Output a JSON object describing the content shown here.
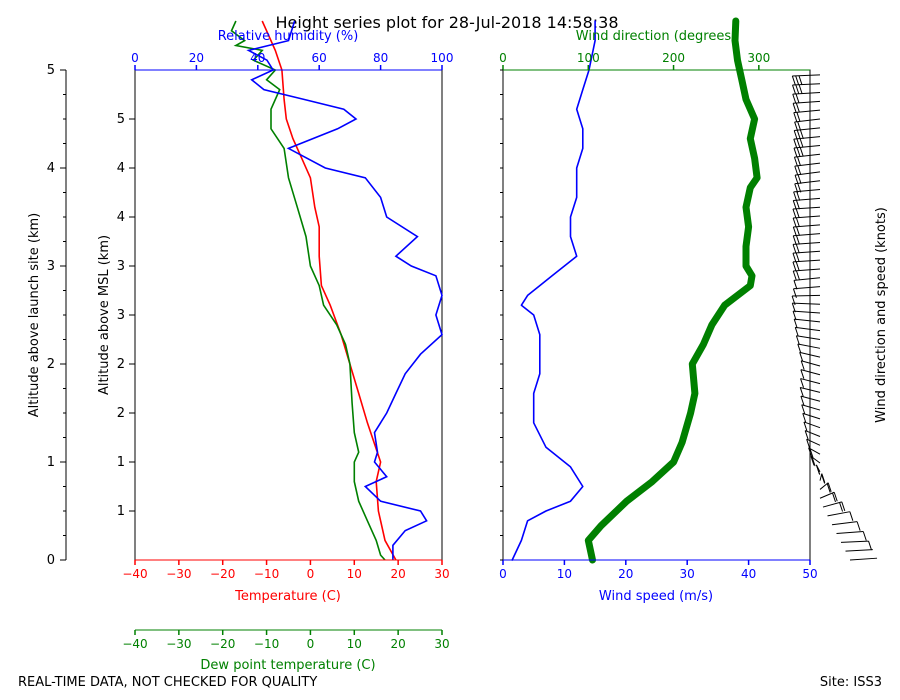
{
  "title": "Height series plot for 28-Jul-2018 14:58:38",
  "footer": {
    "left": "REAL-TIME DATA, NOT CHECKED FOR QUALITY",
    "right": "Site: ISS3"
  },
  "colors": {
    "temperature": "#ff0000",
    "dewpoint": "#008000",
    "humidity": "#0000ff",
    "wind_speed": "#0000ff",
    "wind_dir": "#008000",
    "barbs": "#000000"
  },
  "chart_data": [
    {
      "type": "line",
      "name": "thermo",
      "title": "Height series plot for 28-Jul-2018 14:58:38",
      "ylabel_outer": "Altitude above launch site (km)",
      "ylabel_inner": "Altitude above MSL (km)",
      "y_outer_ticks": [
        "0",
        "1",
        "2",
        "3",
        "4",
        "5"
      ],
      "y_inner_ticks": [
        "1",
        "1",
        "2",
        "2",
        "3",
        "3",
        "4",
        "4",
        "5"
      ],
      "ylim_km": [
        0,
        5
      ],
      "x_temp": {
        "label": "Temperature (C)",
        "lim": [
          -40,
          30
        ],
        "ticks": [
          "−40",
          "−30",
          "−20",
          "−10",
          "0",
          "10",
          "20",
          "30"
        ]
      },
      "x_dew": {
        "label": "Dew point temperature (C)",
        "lim": [
          -40,
          30
        ],
        "ticks": [
          "−40",
          "−30",
          "−20",
          "−10",
          "0",
          "10",
          "20",
          "30"
        ]
      },
      "x_rh": {
        "label": "Relative humidity (%)",
        "lim": [
          0,
          100
        ],
        "ticks": [
          "0",
          "20",
          "40",
          "60",
          "80",
          "100"
        ]
      },
      "series": [
        {
          "name": "Temperature",
          "color": "#ff0000",
          "points": [
            [
              19.5,
              0
            ],
            [
              17,
              0.2
            ],
            [
              15.5,
              0.5
            ],
            [
              15,
              0.8
            ],
            [
              16,
              1.0
            ],
            [
              14.5,
              1.2
            ],
            [
              13,
              1.4
            ],
            [
              11,
              1.7
            ],
            [
              9,
              2.0
            ],
            [
              7,
              2.3
            ],
            [
              4.5,
              2.6
            ],
            [
              2.5,
              2.8
            ],
            [
              2,
              3.1
            ],
            [
              2,
              3.4
            ],
            [
              1,
              3.6
            ],
            [
              0,
              3.9
            ],
            [
              -2,
              4.1
            ],
            [
              -4,
              4.3
            ],
            [
              -5.5,
              4.5
            ],
            [
              -6,
              4.7
            ],
            [
              -6.5,
              5.0
            ],
            [
              -8,
              5.2
            ],
            [
              -10,
              5.4
            ],
            [
              -11,
              5.5
            ]
          ]
        },
        {
          "name": "Dew point",
          "color": "#008000",
          "points": [
            [
              17,
              0
            ],
            [
              16,
              0.05
            ],
            [
              15,
              0.2
            ],
            [
              13,
              0.4
            ],
            [
              11,
              0.6
            ],
            [
              10,
              0.8
            ],
            [
              10,
              1.0
            ],
            [
              11,
              1.1
            ],
            [
              10,
              1.3
            ],
            [
              9.5,
              1.6
            ],
            [
              9,
              2.0
            ],
            [
              8,
              2.2
            ],
            [
              6,
              2.4
            ],
            [
              3,
              2.6
            ],
            [
              2,
              2.8
            ],
            [
              0,
              3.0
            ],
            [
              -1,
              3.3
            ],
            [
              -3,
              3.6
            ],
            [
              -5,
              3.9
            ],
            [
              -6,
              4.2
            ],
            [
              -9,
              4.4
            ],
            [
              -9,
              4.6
            ],
            [
              -7,
              4.8
            ],
            [
              -10,
              4.9
            ],
            [
              -8,
              5.0
            ],
            [
              -13,
              5.1
            ],
            [
              -11,
              5.2
            ],
            [
              -17,
              5.25
            ],
            [
              -15,
              5.3
            ],
            [
              -18,
              5.4
            ],
            [
              -17,
              5.5
            ]
          ]
        },
        {
          "name": "Relative humidity",
          "color": "#0000ff",
          "points": [
            [
              84,
              0
            ],
            [
              84,
              0.15
            ],
            [
              88,
              0.3
            ],
            [
              95,
              0.4
            ],
            [
              93,
              0.5
            ],
            [
              80,
              0.6
            ],
            [
              75,
              0.75
            ],
            [
              82,
              0.85
            ],
            [
              78,
              1.0
            ],
            [
              79,
              1.1
            ],
            [
              78,
              1.3
            ],
            [
              82,
              1.5
            ],
            [
              85,
              1.7
            ],
            [
              88,
              1.9
            ],
            [
              93,
              2.1
            ],
            [
              100,
              2.3
            ],
            [
              98,
              2.5
            ],
            [
              100,
              2.7
            ],
            [
              98,
              2.9
            ],
            [
              90,
              3.0
            ],
            [
              85,
              3.1
            ],
            [
              92,
              3.3
            ],
            [
              82,
              3.5
            ],
            [
              80,
              3.7
            ],
            [
              75,
              3.9
            ],
            [
              62,
              4.0
            ],
            [
              50,
              4.2
            ],
            [
              66,
              4.4
            ],
            [
              72,
              4.5
            ],
            [
              68,
              4.6
            ],
            [
              55,
              4.7
            ],
            [
              42,
              4.8
            ],
            [
              38,
              4.9
            ],
            [
              45,
              5.0
            ],
            [
              43,
              5.1
            ],
            [
              37,
              5.2
            ],
            [
              50,
              5.3
            ],
            [
              52,
              5.5
            ]
          ]
        }
      ]
    },
    {
      "type": "line",
      "name": "wind",
      "x_speed": {
        "label": "Wind speed (m/s)",
        "lim": [
          0,
          50
        ],
        "ticks": [
          "0",
          "10",
          "20",
          "30",
          "40",
          "50"
        ]
      },
      "x_dir": {
        "label": "Wind direction (degrees)",
        "lim": [
          0,
          360
        ],
        "ticks": [
          "0",
          "100",
          "200",
          "300"
        ]
      },
      "ylim_km": [
        0,
        5
      ],
      "series": [
        {
          "name": "Wind speed",
          "color": "#0000ff",
          "points": [
            [
              1.5,
              0
            ],
            [
              3,
              0.2
            ],
            [
              4,
              0.4
            ],
            [
              7,
              0.5
            ],
            [
              11,
              0.6
            ],
            [
              13,
              0.75
            ],
            [
              11,
              0.95
            ],
            [
              7,
              1.15
            ],
            [
              5,
              1.4
            ],
            [
              5,
              1.7
            ],
            [
              6,
              1.9
            ],
            [
              6,
              2.1
            ],
            [
              6,
              2.3
            ],
            [
              5,
              2.5
            ],
            [
              3,
              2.6
            ],
            [
              4,
              2.7
            ],
            [
              6,
              2.8
            ],
            [
              8,
              2.9
            ],
            [
              10,
              3.0
            ],
            [
              12,
              3.1
            ],
            [
              11,
              3.3
            ],
            [
              11,
              3.5
            ],
            [
              12,
              3.7
            ],
            [
              12,
              3.9
            ],
            [
              12,
              4.0
            ],
            [
              13,
              4.2
            ],
            [
              13,
              4.4
            ],
            [
              12,
              4.6
            ],
            [
              13,
              4.8
            ],
            [
              14,
              5.0
            ],
            [
              15,
              5.3
            ],
            [
              15,
              5.5
            ]
          ]
        },
        {
          "name": "Wind direction",
          "color": "#008000",
          "points": [
            [
              105,
              0
            ],
            [
              100,
              0.2
            ],
            [
              115,
              0.35
            ],
            [
              145,
              0.6
            ],
            [
              175,
              0.8
            ],
            [
              200,
              1.0
            ],
            [
              210,
              1.2
            ],
            [
              220,
              1.5
            ],
            [
              225,
              1.7
            ],
            [
              222,
              2.0
            ],
            [
              235,
              2.2
            ],
            [
              245,
              2.4
            ],
            [
              260,
              2.6
            ],
            [
              290,
              2.8
            ],
            [
              292,
              2.9
            ],
            [
              285,
              3.0
            ],
            [
              285,
              3.2
            ],
            [
              288,
              3.4
            ],
            [
              285,
              3.6
            ],
            [
              290,
              3.8
            ],
            [
              298,
              3.9
            ],
            [
              295,
              4.1
            ],
            [
              290,
              4.3
            ],
            [
              295,
              4.5
            ],
            [
              285,
              4.7
            ],
            [
              280,
              4.9
            ],
            [
              275,
              5.1
            ],
            [
              272,
              5.3
            ],
            [
              273,
              5.5
            ]
          ]
        }
      ],
      "barb_axis_label": "Wind direction and speed (knots)"
    }
  ]
}
